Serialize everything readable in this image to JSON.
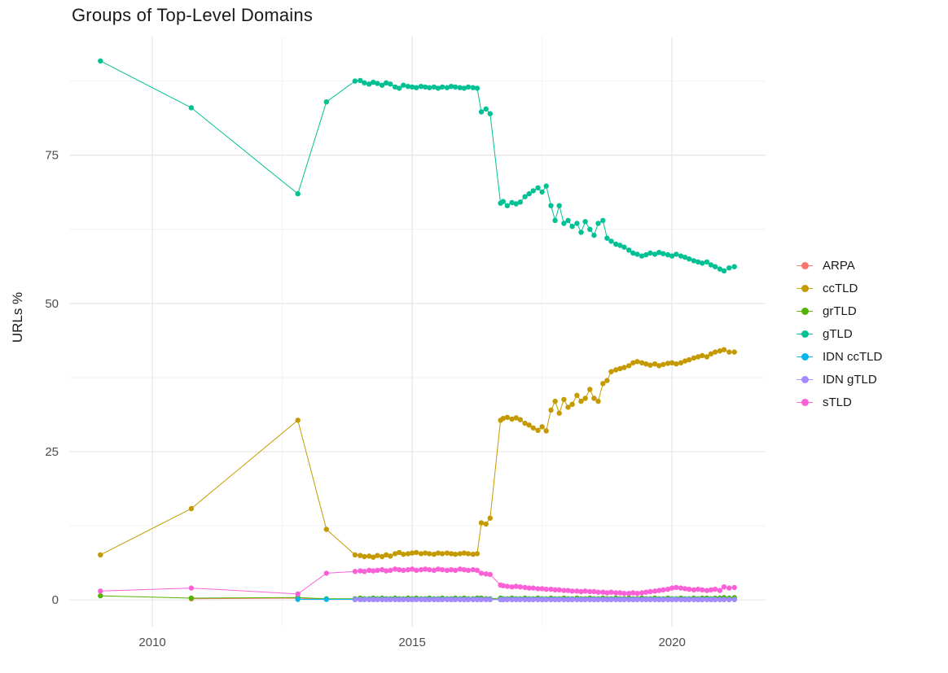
{
  "chart_data": {
    "type": "line",
    "title": "Groups of Top-Level Domains",
    "xlabel": "",
    "ylabel": "URLs %",
    "legend_position": "right",
    "grid": true,
    "xlim": [
      2008.4,
      2021.8
    ],
    "ylim": [
      -4.5,
      95
    ],
    "x_ticks": [
      2010,
      2015,
      2020
    ],
    "y_ticks": [
      0,
      25,
      50,
      75
    ],
    "x_minor": [
      2012.5,
      2017.5
    ],
    "y_minor": [
      12.5,
      37.5,
      62.5,
      87.5
    ],
    "x": [
      2009.0,
      2010.75,
      2012.8,
      2013.35,
      2013.9,
      2014.0,
      2014.08,
      2014.17,
      2014.25,
      2014.33,
      2014.42,
      2014.5,
      2014.58,
      2014.67,
      2014.75,
      2014.83,
      2014.92,
      2015.0,
      2015.08,
      2015.17,
      2015.25,
      2015.33,
      2015.42,
      2015.5,
      2015.58,
      2015.67,
      2015.75,
      2015.83,
      2015.92,
      2016.0,
      2016.08,
      2016.17,
      2016.25,
      2016.33,
      2016.42,
      2016.5,
      2016.7,
      2016.75,
      2016.83,
      2016.92,
      2017.0,
      2017.08,
      2017.17,
      2017.25,
      2017.33,
      2017.42,
      2017.5,
      2017.58,
      2017.67,
      2017.75,
      2017.83,
      2017.92,
      2018.0,
      2018.08,
      2018.17,
      2018.25,
      2018.33,
      2018.42,
      2018.5,
      2018.58,
      2018.67,
      2018.75,
      2018.83,
      2018.92,
      2019.0,
      2019.08,
      2019.17,
      2019.25,
      2019.33,
      2019.42,
      2019.5,
      2019.58,
      2019.67,
      2019.75,
      2019.83,
      2019.92,
      2020.0,
      2020.08,
      2020.17,
      2020.25,
      2020.33,
      2020.42,
      2020.5,
      2020.58,
      2020.67,
      2020.75,
      2020.83,
      2020.92,
      2021.0,
      2021.1,
      2021.2
    ],
    "series": [
      {
        "name": "ARPA",
        "color": "#F8766D",
        "values": [
          null,
          0.2,
          0.3,
          0.1,
          0.1,
          0.1,
          0.1,
          0.1,
          0.1,
          0.1,
          0.1,
          0.1,
          0.1,
          0.1,
          0.1,
          0.1,
          0.1,
          0.1,
          0.1,
          0.1,
          0.1,
          0.1,
          0.1,
          0.1,
          0.1,
          0.1,
          0.1,
          0.1,
          0.1,
          0.1,
          0.1,
          0.1,
          0.1,
          0.1,
          0.1,
          0.1,
          0.1,
          0.1,
          0.1,
          0.1,
          0.1,
          0.1,
          0.1,
          0.1,
          0.1,
          0.1,
          0.1,
          0.1,
          0.1,
          0.1,
          0.1,
          0.1,
          0.1,
          0.1,
          0.1,
          0.1,
          0.1,
          0.1,
          0.1,
          0.1,
          0.1,
          0.1,
          0.1,
          0.1,
          0.1,
          0.1,
          0.1,
          0.1,
          0.1,
          0.1,
          0.1,
          0.1,
          0.1,
          0.1,
          0.1,
          0.1,
          0.1,
          0.1,
          0.1,
          0.1,
          0.1,
          0.1,
          0.1,
          0.1,
          0.1,
          0.1,
          0.1,
          0.1,
          0.1,
          0.1,
          0.1
        ]
      },
      {
        "name": "ccTLD",
        "color": "#C49A00",
        "values": [
          7.6,
          15.4,
          30.3,
          11.9,
          7.6,
          7.5,
          7.3,
          7.4,
          7.2,
          7.5,
          7.3,
          7.6,
          7.4,
          7.8,
          8.0,
          7.7,
          7.8,
          7.9,
          8.0,
          7.8,
          7.9,
          7.8,
          7.7,
          7.9,
          7.8,
          7.9,
          7.8,
          7.7,
          7.8,
          7.9,
          7.8,
          7.7,
          7.8,
          13.0,
          12.8,
          13.8,
          30.3,
          30.6,
          30.8,
          30.5,
          30.7,
          30.4,
          29.8,
          29.5,
          29.0,
          28.6,
          29.2,
          28.5,
          32.0,
          33.5,
          31.5,
          33.8,
          32.5,
          33.0,
          34.5,
          33.5,
          34.0,
          35.5,
          34.0,
          33.5,
          36.5,
          37.0,
          38.5,
          38.8,
          39.0,
          39.2,
          39.5,
          40.0,
          40.2,
          40.0,
          39.8,
          39.6,
          39.8,
          39.5,
          39.7,
          39.9,
          40.0,
          39.8,
          40.0,
          40.3,
          40.5,
          40.8,
          41.0,
          41.2,
          41.0,
          41.5,
          41.8,
          42.0,
          42.2,
          41.8,
          41.8
        ]
      },
      {
        "name": "grTLD",
        "color": "#53B400",
        "values": [
          0.7,
          0.3,
          0.4,
          0.2,
          0.2,
          0.3,
          0.2,
          0.2,
          0.3,
          0.2,
          0.3,
          0.2,
          0.2,
          0.3,
          0.2,
          0.2,
          0.3,
          0.2,
          0.3,
          0.2,
          0.2,
          0.3,
          0.2,
          0.2,
          0.3,
          0.2,
          0.2,
          0.3,
          0.2,
          0.3,
          0.2,
          0.2,
          0.3,
          0.3,
          0.2,
          0.2,
          0.3,
          0.2,
          0.2,
          0.3,
          0.2,
          0.2,
          0.3,
          0.2,
          0.2,
          0.3,
          0.2,
          0.2,
          0.3,
          0.2,
          0.2,
          0.3,
          0.2,
          0.2,
          0.3,
          0.2,
          0.2,
          0.3,
          0.2,
          0.2,
          0.3,
          0.2,
          0.2,
          0.3,
          0.2,
          0.2,
          0.3,
          0.2,
          0.2,
          0.3,
          0.2,
          0.2,
          0.3,
          0.2,
          0.2,
          0.3,
          0.2,
          0.2,
          0.3,
          0.2,
          0.2,
          0.3,
          0.2,
          0.3,
          0.3,
          0.2,
          0.3,
          0.3,
          0.4,
          0.3,
          0.4
        ]
      },
      {
        "name": "gTLD",
        "color": "#00C094",
        "values": [
          90.9,
          83.0,
          68.5,
          84.0,
          87.5,
          87.6,
          87.2,
          87.0,
          87.3,
          87.1,
          86.8,
          87.2,
          87.0,
          86.5,
          86.3,
          86.8,
          86.6,
          86.5,
          86.4,
          86.6,
          86.5,
          86.4,
          86.5,
          86.3,
          86.5,
          86.4,
          86.6,
          86.5,
          86.4,
          86.3,
          86.5,
          86.4,
          86.3,
          82.3,
          82.8,
          82.0,
          66.9,
          67.2,
          66.5,
          67.0,
          66.8,
          67.1,
          68.0,
          68.5,
          69.0,
          69.5,
          68.8,
          69.8,
          66.5,
          64.0,
          66.5,
          63.5,
          64.0,
          63.0,
          63.5,
          62.0,
          63.8,
          62.5,
          61.5,
          63.5,
          64.0,
          61.0,
          60.5,
          60.0,
          59.8,
          59.5,
          59.0,
          58.5,
          58.3,
          58.0,
          58.2,
          58.5,
          58.3,
          58.6,
          58.4,
          58.2,
          58.0,
          58.3,
          58.0,
          57.8,
          57.5,
          57.2,
          57.0,
          56.8,
          57.0,
          56.5,
          56.2,
          55.8,
          55.5,
          56.0,
          56.2
        ]
      },
      {
        "name": "IDN ccTLD",
        "color": "#00B6EB",
        "values": [
          null,
          null,
          0.1,
          0.1,
          0.1,
          0.1,
          0.1,
          0.1,
          0.1,
          0.1,
          0.1,
          0.1,
          0.1,
          0.1,
          0.1,
          0.1,
          0.1,
          0.1,
          0.1,
          0.1,
          0.1,
          0.1,
          0.1,
          0.1,
          0.1,
          0.1,
          0.1,
          0.1,
          0.1,
          0.1,
          0.1,
          0.1,
          0.1,
          0.1,
          0.1,
          0.1,
          0.1,
          0.1,
          0.1,
          0.1,
          0.1,
          0.1,
          0.1,
          0.1,
          0.1,
          0.1,
          0.1,
          0.1,
          0.1,
          0.1,
          0.1,
          0.1,
          0.1,
          0.1,
          0.1,
          0.1,
          0.1,
          0.1,
          0.1,
          0.1,
          0.1,
          0.1,
          0.1,
          0.1,
          0.1,
          0.1,
          0.1,
          0.1,
          0.1,
          0.1,
          0.1,
          0.1,
          0.1,
          0.1,
          0.1,
          0.1,
          0.1,
          0.1,
          0.1,
          0.1,
          0.1,
          0.1,
          0.1,
          0.1,
          0.1,
          0.1,
          0.1,
          0.1,
          0.1,
          0.1,
          0.1
        ]
      },
      {
        "name": "IDN gTLD",
        "color": "#A58AFF",
        "values": [
          null,
          null,
          null,
          null,
          0.05,
          0.05,
          0.05,
          0.05,
          0.05,
          0.05,
          0.05,
          0.05,
          0.05,
          0.05,
          0.05,
          0.05,
          0.05,
          0.05,
          0.05,
          0.05,
          0.05,
          0.05,
          0.05,
          0.05,
          0.05,
          0.05,
          0.05,
          0.05,
          0.05,
          0.05,
          0.05,
          0.05,
          0.05,
          0.05,
          0.05,
          0.05,
          0.05,
          0.05,
          0.05,
          0.05,
          0.05,
          0.05,
          0.05,
          0.05,
          0.05,
          0.05,
          0.05,
          0.05,
          0.05,
          0.05,
          0.05,
          0.05,
          0.05,
          0.05,
          0.05,
          0.05,
          0.05,
          0.05,
          0.05,
          0.05,
          0.05,
          0.05,
          0.05,
          0.05,
          0.05,
          0.05,
          0.05,
          0.05,
          0.05,
          0.05,
          0.05,
          0.05,
          0.05,
          0.05,
          0.05,
          0.05,
          0.05,
          0.05,
          0.05,
          0.05,
          0.05,
          0.05,
          0.05,
          0.05,
          0.05,
          0.05,
          0.05,
          0.05,
          0.05,
          0.05,
          0.05
        ]
      },
      {
        "name": "sTLD",
        "color": "#FB61D7",
        "values": [
          1.5,
          2.0,
          1.0,
          4.5,
          4.8,
          4.9,
          4.8,
          5.0,
          4.9,
          5.0,
          5.1,
          4.9,
          5.0,
          5.2,
          5.1,
          5.0,
          5.1,
          5.2,
          5.0,
          5.1,
          5.2,
          5.1,
          5.0,
          5.2,
          5.1,
          5.0,
          5.1,
          5.0,
          5.2,
          5.1,
          5.0,
          5.1,
          5.0,
          4.5,
          4.4,
          4.3,
          2.5,
          2.4,
          2.3,
          2.2,
          2.3,
          2.2,
          2.1,
          2.0,
          2.0,
          1.9,
          1.9,
          1.8,
          1.8,
          1.7,
          1.7,
          1.6,
          1.6,
          1.5,
          1.5,
          1.4,
          1.5,
          1.4,
          1.4,
          1.3,
          1.3,
          1.2,
          1.3,
          1.2,
          1.2,
          1.1,
          1.1,
          1.2,
          1.1,
          1.2,
          1.3,
          1.4,
          1.5,
          1.6,
          1.7,
          1.8,
          2.0,
          2.1,
          2.0,
          1.9,
          1.8,
          1.7,
          1.8,
          1.7,
          1.6,
          1.7,
          1.8,
          1.6,
          2.2,
          2.0,
          2.1
        ]
      }
    ]
  }
}
